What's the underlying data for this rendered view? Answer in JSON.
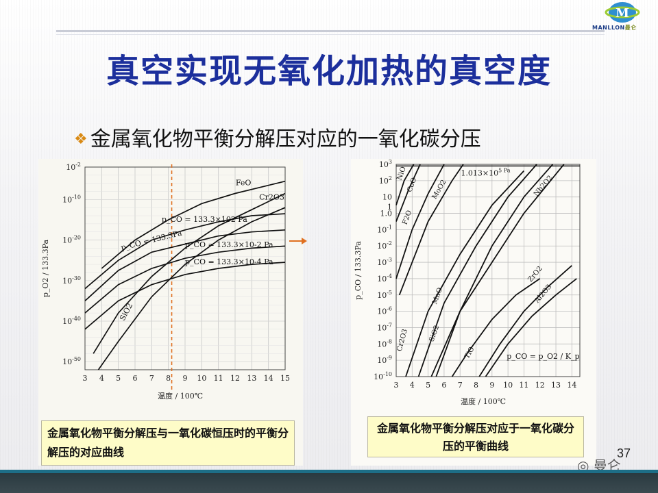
{
  "header": {
    "title": "真空实现无氧化加热的真空度",
    "bullet": "金属氧化物平衡分解压对应的一氧化碳分压",
    "logo_text": "MANLLON",
    "logo_cn": "曼仑",
    "logo_letter": "M"
  },
  "footer": {
    "page_number": "37",
    "wechat_label": "曼仑"
  },
  "colors": {
    "title": "#1c2f9c",
    "bullet": "#d98a14",
    "caption_bg": "#fefcc8",
    "footer_bar": "#1d6e87",
    "guide_line": "#e07020"
  },
  "chart_data": [
    {
      "type": "line",
      "caption": "金属氧化物平衡分解压与一氧化碳恒压时的平衡分解压的对应曲线",
      "xlabel": "温度 / 100℃",
      "ylabel": "p_O2 / 133.3Pa",
      "xlim": [
        3,
        15
      ],
      "ylim": [
        -52,
        -2
      ],
      "x_ticks": [
        "3",
        "4",
        "5",
        "6",
        "7",
        "8",
        "9",
        "10",
        "11",
        "12",
        "13",
        "14",
        "15"
      ],
      "y_ticks": [
        "10^-2",
        "10^-10",
        "10^-20",
        "10^-30",
        "10^-40",
        "10^-50"
      ],
      "marker_x": 8.2,
      "series": [
        {
          "name": "FeO",
          "points": [
            [
              4,
              -27
            ],
            [
              6,
              -20
            ],
            [
              8,
              -15
            ],
            [
              10,
              -11
            ],
            [
              12,
              -8.5
            ],
            [
              15,
              -5.5
            ]
          ]
        },
        {
          "name": "Cr2O3",
          "points": [
            [
              3.5,
              -48
            ],
            [
              5,
              -38
            ],
            [
              7,
              -29
            ],
            [
              9,
              -22
            ],
            [
              11,
              -16.5
            ],
            [
              13,
              -12.5
            ],
            [
              15,
              -8.5
            ]
          ]
        },
        {
          "name": "SiO2",
          "points": [
            [
              3.8,
              -55
            ],
            [
              5,
              -45
            ],
            [
              7,
              -34
            ],
            [
              9,
              -26
            ],
            [
              11,
              -20
            ],
            [
              13,
              -15.5
            ],
            [
              15,
              -12
            ]
          ]
        },
        {
          "name": "p_CO = 133.3×10^2 Pa",
          "points": [
            [
              3,
              -32
            ],
            [
              5,
              -25
            ],
            [
              7,
              -20
            ],
            [
              9,
              -17.5
            ],
            [
              11,
              -15.5
            ],
            [
              13,
              -14
            ],
            [
              15,
              -13.5
            ]
          ]
        },
        {
          "name": "p_CO = 133.3Pa",
          "points": [
            [
              3,
              -35
            ],
            [
              5,
              -27.5
            ],
            [
              7,
              -23
            ],
            [
              9,
              -21
            ],
            [
              11,
              -19
            ],
            [
              13,
              -18
            ],
            [
              15,
              -17.5
            ]
          ]
        },
        {
          "name": "p_CO = 133.3×10^-2 Pa",
          "points": [
            [
              3,
              -38
            ],
            [
              5,
              -31
            ],
            [
              7,
              -27
            ],
            [
              9,
              -24.5
            ],
            [
              11,
              -23
            ],
            [
              13,
              -22
            ],
            [
              15,
              -21.5
            ]
          ]
        },
        {
          "name": "p_CO = 133.3×10^-4 Pa",
          "points": [
            [
              3,
              -42
            ],
            [
              5,
              -35
            ],
            [
              7,
              -31
            ],
            [
              9,
              -28.5
            ],
            [
              11,
              -27
            ],
            [
              13,
              -26
            ],
            [
              15,
              -25.5
            ]
          ]
        }
      ]
    },
    {
      "type": "line",
      "caption": "金属氧化物平衡分解压对应于一氧化碳分压的平衡曲线",
      "xlabel": "温度 / 100℃",
      "ylabel": "p_CO / 133.3Pa",
      "xlim": [
        3,
        14.5
      ],
      "ylim": [
        -10,
        3
      ],
      "x_ticks": [
        "3",
        "4",
        "5",
        "6",
        "7",
        "8",
        "9",
        "10",
        "11",
        "12",
        "13",
        "14"
      ],
      "y_ticks": [
        "10^3",
        "10^2",
        "10",
        "1",
        "1.0",
        "10^-1",
        "10^-2",
        "10^-3",
        "10^-4",
        "10^-5",
        "10^-6",
        "10^-7",
        "10^-8",
        "10^-9",
        "10^-10"
      ],
      "annotation": "1.013×10^5 Pa",
      "formula": "p_CO = p_O2 / K_p",
      "series": [
        {
          "name": "NiO",
          "points": [
            [
              3,
              0.5
            ],
            [
              3.5,
              2
            ],
            [
              4.1,
              3
            ]
          ]
        },
        {
          "name": "CoO",
          "points": [
            [
              3,
              -0.5
            ],
            [
              3.8,
              1.5
            ],
            [
              4.5,
              3
            ]
          ]
        },
        {
          "name": "F2O",
          "points": [
            [
              3,
              -4
            ],
            [
              4,
              -1
            ],
            [
              5,
              1.2
            ],
            [
              6,
              3
            ]
          ]
        },
        {
          "name": "MoO2",
          "points": [
            [
              3.2,
              -5
            ],
            [
              5,
              -0.5
            ],
            [
              6.5,
              2
            ],
            [
              7.2,
              3
            ]
          ]
        },
        {
          "name": "Nb2O2",
          "points": [
            [
              5.5,
              -10
            ],
            [
              7,
              -6
            ],
            [
              9,
              -2
            ],
            [
              11,
              1
            ],
            [
              12.8,
              3
            ]
          ]
        },
        {
          "name": "Cr2O3",
          "points": [
            [
              3.6,
              -10
            ],
            [
              5,
              -6
            ],
            [
              7,
              -2.5
            ],
            [
              9,
              0.5
            ],
            [
              11,
              2.6
            ]
          ]
        },
        {
          "name": "MnO",
          "points": [
            [
              4.4,
              -10
            ],
            [
              6,
              -5.5
            ],
            [
              8,
              -2
            ],
            [
              10,
              1
            ],
            [
              11.8,
              3
            ]
          ]
        },
        {
          "name": "SiO2",
          "points": [
            [
              5.2,
              -10
            ],
            [
              7,
              -6
            ],
            [
              9,
              -3
            ],
            [
              11,
              0
            ],
            [
              13.5,
              3
            ]
          ]
        },
        {
          "name": "ZrO2",
          "points": [
            [
              8.2,
              -10
            ],
            [
              9.5,
              -8
            ],
            [
              11,
              -6
            ],
            [
              12.5,
              -4.5
            ],
            [
              14,
              -3.2
            ]
          ]
        },
        {
          "name": "Al2O3",
          "points": [
            [
              8.6,
              -10
            ],
            [
              10,
              -8
            ],
            [
              11.5,
              -6.3
            ],
            [
              13,
              -5
            ],
            [
              14.3,
              -4
            ]
          ]
        },
        {
          "name": "TiO",
          "points": [
            [
              6.5,
              -10
            ],
            [
              7.5,
              -8.5
            ],
            [
              9,
              -6.5
            ],
            [
              10.5,
              -5
            ],
            [
              12,
              -4
            ]
          ]
        }
      ]
    }
  ]
}
